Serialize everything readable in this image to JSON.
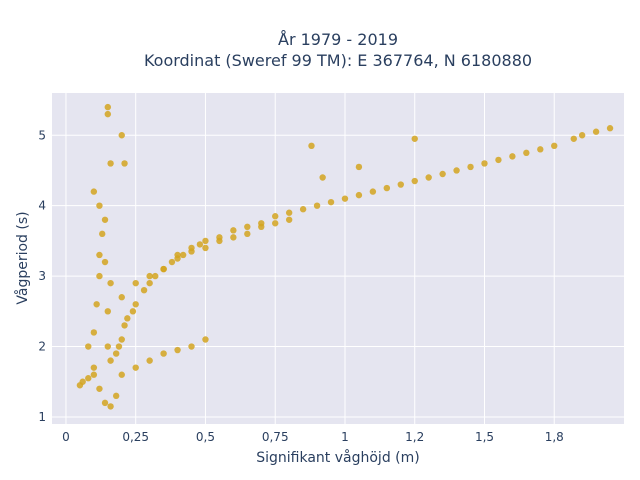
{
  "chart_data": {
    "type": "scatter",
    "title_line1": "År 1979 - 2019",
    "title_line2": "Koordinat (Sweref 99 TM): E 367764, N 6180880",
    "xlabel": "Signifikant våghöjd (m)",
    "ylabel": "Vågperiod (s)",
    "xlim": [
      -0.05,
      2.0
    ],
    "ylim": [
      0.9,
      5.6
    ],
    "x_ticks": [
      0,
      0.25,
      0.5,
      0.75,
      1,
      1.25,
      1.5,
      1.75
    ],
    "x_tick_labels": [
      "0",
      "0,25",
      "0,5",
      "0,75",
      "1",
      "1,2",
      "1,5",
      "1,8"
    ],
    "y_ticks": [
      1,
      2,
      3,
      4,
      5
    ],
    "y_tick_labels": [
      "1",
      "2",
      "3",
      "4",
      "5"
    ],
    "grid": true,
    "colors": {
      "plot_background": "#e5e5f0",
      "grid": "#ffffff",
      "marker": "#d4a520",
      "text": "#2a3f5f"
    },
    "series": [
      {
        "x": [
          0.05,
          0.06,
          0.08,
          0.1,
          0.1,
          0.11,
          0.12,
          0.12,
          0.13,
          0.14,
          0.15,
          0.15,
          0.16,
          0.18,
          0.19,
          0.2,
          0.21,
          0.22,
          0.24,
          0.25,
          0.28,
          0.3,
          0.32,
          0.35,
          0.38,
          0.4,
          0.42,
          0.45,
          0.48,
          0.5,
          0.55,
          0.6,
          0.65,
          0.7,
          0.75,
          0.8,
          0.85,
          0.9,
          0.95,
          1.0,
          1.05,
          1.1,
          1.15,
          1.2,
          1.25,
          1.3,
          1.35,
          1.4,
          1.45,
          1.5,
          1.55,
          1.6,
          1.65,
          1.7,
          1.75,
          1.82,
          1.85,
          1.9,
          1.95,
          0.08,
          0.1,
          0.12,
          0.14,
          0.16,
          0.18,
          0.1,
          0.12,
          0.14,
          0.16,
          0.2,
          0.25,
          0.3,
          0.35,
          0.4,
          0.45,
          0.5,
          0.15,
          0.15,
          0.16,
          0.2,
          0.21,
          0.88,
          1.05,
          1.25,
          0.92,
          0.2,
          0.25,
          0.3,
          0.35,
          0.4,
          0.45,
          0.5,
          0.55,
          0.6,
          0.65,
          0.7,
          0.75,
          0.8
        ],
        "y": [
          1.45,
          1.5,
          1.55,
          1.6,
          2.2,
          2.6,
          3.0,
          3.3,
          3.6,
          3.8,
          2.5,
          2.0,
          1.8,
          1.9,
          2.0,
          2.1,
          2.3,
          2.4,
          2.5,
          2.6,
          2.8,
          2.9,
          3.0,
          3.1,
          3.2,
          3.3,
          3.3,
          3.4,
          3.45,
          3.5,
          3.55,
          3.65,
          3.7,
          3.75,
          3.85,
          3.9,
          3.95,
          4.0,
          4.05,
          4.1,
          4.15,
          4.2,
          4.25,
          4.3,
          4.35,
          4.4,
          4.45,
          4.5,
          4.55,
          4.6,
          4.65,
          4.7,
          4.75,
          4.8,
          4.85,
          4.95,
          5.0,
          5.05,
          5.1,
          2.0,
          1.7,
          1.4,
          1.2,
          1.15,
          1.3,
          4.2,
          4.0,
          3.2,
          2.9,
          1.6,
          1.7,
          1.8,
          1.9,
          1.95,
          2.0,
          2.1,
          5.4,
          5.3,
          4.6,
          5.0,
          4.6,
          4.85,
          4.55,
          4.95,
          4.4,
          2.7,
          2.9,
          3.0,
          3.1,
          3.25,
          3.35,
          3.4,
          3.5,
          3.55,
          3.6,
          3.7,
          3.75,
          3.8
        ]
      }
    ]
  }
}
